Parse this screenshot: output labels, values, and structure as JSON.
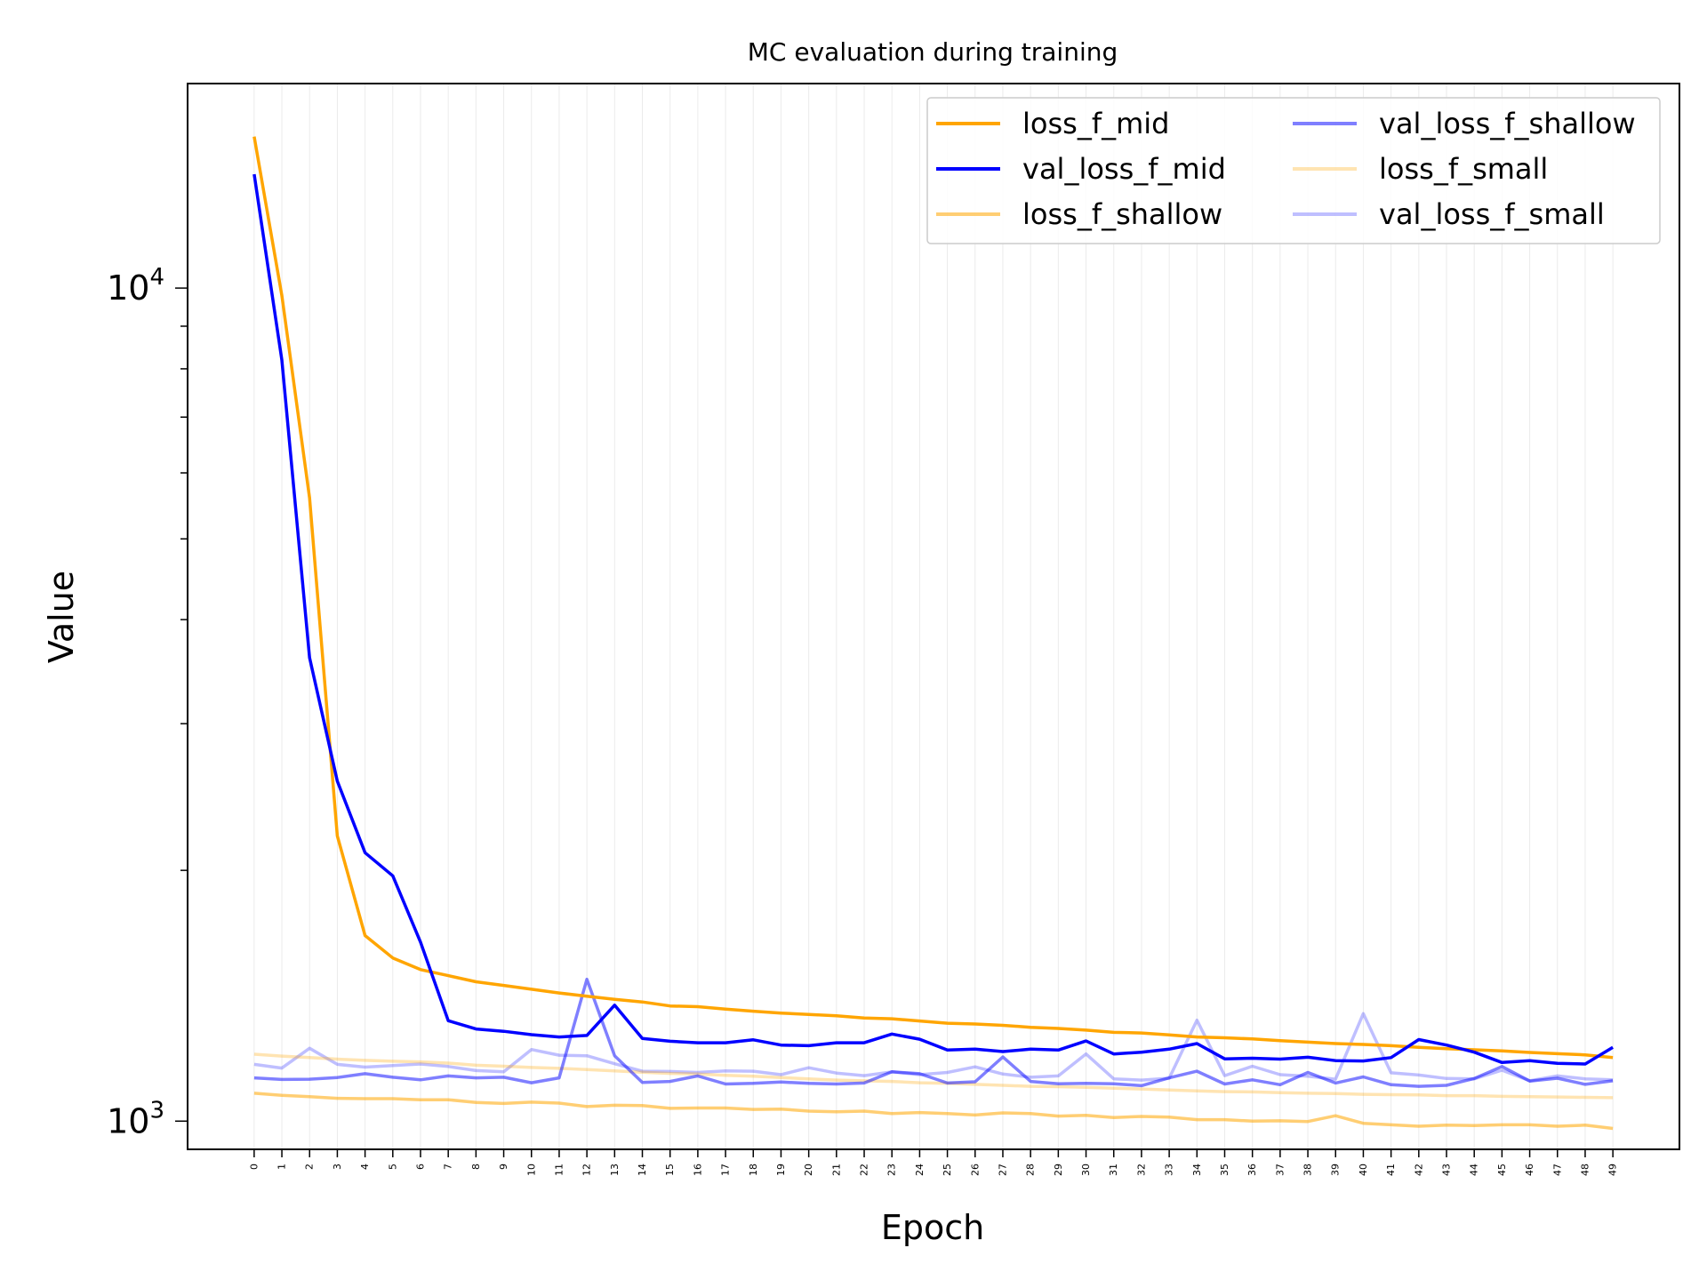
{
  "chart_data": {
    "type": "line",
    "title": "MC evaluation during training",
    "xlabel": "Epoch",
    "ylabel": "Value",
    "yscale": "log",
    "xlim": [
      -2.4,
      51.4
    ],
    "ylim": [
      925,
      17600
    ],
    "grid": "x",
    "legend_position": "top-right",
    "legend_columns": 2,
    "x": [
      0,
      1,
      2,
      3,
      4,
      5,
      6,
      7,
      8,
      9,
      10,
      11,
      12,
      13,
      14,
      15,
      16,
      17,
      18,
      19,
      20,
      21,
      22,
      23,
      24,
      25,
      26,
      27,
      28,
      29,
      30,
      31,
      32,
      33,
      34,
      35,
      36,
      37,
      38,
      39,
      40,
      41,
      42,
      43,
      44,
      45,
      46,
      47,
      48,
      49
    ],
    "x_tick_labels": [
      "0",
      "1",
      "2",
      "3",
      "4",
      "5",
      "6",
      "7",
      "8",
      "9",
      "10",
      "11",
      "12",
      "13",
      "14",
      "15",
      "16",
      "17",
      "18",
      "19",
      "20",
      "21",
      "22",
      "23",
      "24",
      "25",
      "26",
      "27",
      "28",
      "29",
      "30",
      "31",
      "32",
      "33",
      "34",
      "35",
      "36",
      "37",
      "38",
      "39",
      "40",
      "41",
      "42",
      "43",
      "44",
      "45",
      "46",
      "47",
      "48",
      "49"
    ],
    "y_ticks": [
      {
        "value": 1000,
        "base": "10",
        "exp": "3"
      },
      {
        "value": 10000,
        "base": "10",
        "exp": "4"
      }
    ],
    "y_minor_ticks": [
      2000,
      3000,
      4000,
      5000,
      6000,
      7000,
      8000,
      9000
    ],
    "series": [
      {
        "name": "loss_f_mid",
        "color": "#ffa500",
        "opacity": 1.0,
        "values": [
          15200,
          9800,
          5600,
          2200,
          1670,
          1570,
          1520,
          1495,
          1470,
          1455,
          1440,
          1425,
          1412,
          1400,
          1390,
          1375,
          1372,
          1363,
          1355,
          1348,
          1343,
          1338,
          1330,
          1327,
          1319,
          1311,
          1308,
          1303,
          1296,
          1292,
          1286,
          1278,
          1276,
          1269,
          1262,
          1259,
          1255,
          1249,
          1244,
          1239,
          1236,
          1232,
          1226,
          1222,
          1218,
          1214,
          1209,
          1205,
          1201,
          1192
        ]
      },
      {
        "name": "val_loss_f_mid",
        "color": "#0000ff",
        "opacity": 1.0,
        "values": [
          13700,
          8200,
          3600,
          2560,
          2100,
          1970,
          1640,
          1320,
          1290,
          1282,
          1270,
          1262,
          1267,
          1378,
          1257,
          1247,
          1242,
          1242,
          1252,
          1234,
          1232,
          1242,
          1242,
          1272,
          1254,
          1217,
          1220,
          1212,
          1220,
          1217,
          1248,
          1204,
          1210,
          1220,
          1239,
          1188,
          1190,
          1187,
          1193,
          1182,
          1181,
          1192,
          1253,
          1234,
          1210,
          1176,
          1182,
          1173,
          1171,
          1226
        ]
      },
      {
        "name": "loss_f_shallow",
        "color": "#ffa500",
        "opacity": 0.55,
        "values": [
          1080,
          1074,
          1070,
          1065,
          1064,
          1064,
          1061,
          1061,
          1053,
          1050,
          1054,
          1051,
          1041,
          1045,
          1044,
          1036,
          1037,
          1037,
          1033,
          1034,
          1028,
          1026,
          1028,
          1021,
          1024,
          1021,
          1017,
          1023,
          1021,
          1014,
          1016,
          1010,
          1013,
          1011,
          1004,
          1004,
          1000,
          1001,
          999,
          1015,
          994,
          990,
          986,
          989,
          988,
          990,
          990,
          986,
          989,
          980
        ]
      },
      {
        "name": "val_loss_f_shallow",
        "color": "#0000ff",
        "opacity": 0.5,
        "values": [
          1127,
          1122,
          1123,
          1128,
          1140,
          1129,
          1121,
          1133,
          1127,
          1129,
          1112,
          1127,
          1480,
          1198,
          1113,
          1116,
          1133,
          1108,
          1110,
          1114,
          1110,
          1108,
          1111,
          1146,
          1140,
          1111,
          1115,
          1194,
          1116,
          1109,
          1110,
          1109,
          1103,
          1127,
          1148,
          1108,
          1121,
          1106,
          1144,
          1111,
          1130,
          1106,
          1101,
          1104,
          1125,
          1163,
          1117,
          1126,
          1107,
          1118
        ]
      },
      {
        "name": "loss_f_small",
        "color": "#ffa500",
        "opacity": 0.3,
        "values": [
          1203,
          1197,
          1192,
          1187,
          1183,
          1180,
          1178,
          1174,
          1167,
          1164,
          1160,
          1157,
          1153,
          1149,
          1145,
          1141,
          1139,
          1135,
          1132,
          1128,
          1124,
          1120,
          1118,
          1116,
          1112,
          1110,
          1107,
          1104,
          1101,
          1100,
          1098,
          1095,
          1093,
          1090,
          1087,
          1085,
          1084,
          1082,
          1080,
          1079,
          1077,
          1076,
          1075,
          1073,
          1073,
          1071,
          1070,
          1069,
          1068,
          1067
        ]
      },
      {
        "name": "val_loss_f_small",
        "color": "#0000ff",
        "opacity": 0.25,
        "values": [
          1170,
          1158,
          1223,
          1170,
          1161,
          1166,
          1171,
          1163,
          1150,
          1146,
          1219,
          1200,
          1198,
          1172,
          1148,
          1147,
          1144,
          1149,
          1148,
          1137,
          1159,
          1142,
          1134,
          1146,
          1137,
          1144,
          1162,
          1139,
          1129,
          1133,
          1204,
          1124,
          1120,
          1126,
          1322,
          1134,
          1164,
          1137,
          1132,
          1123,
          1346,
          1143,
          1136,
          1125,
          1124,
          1151,
          1118,
          1133,
          1124,
          1121
        ]
      }
    ]
  }
}
